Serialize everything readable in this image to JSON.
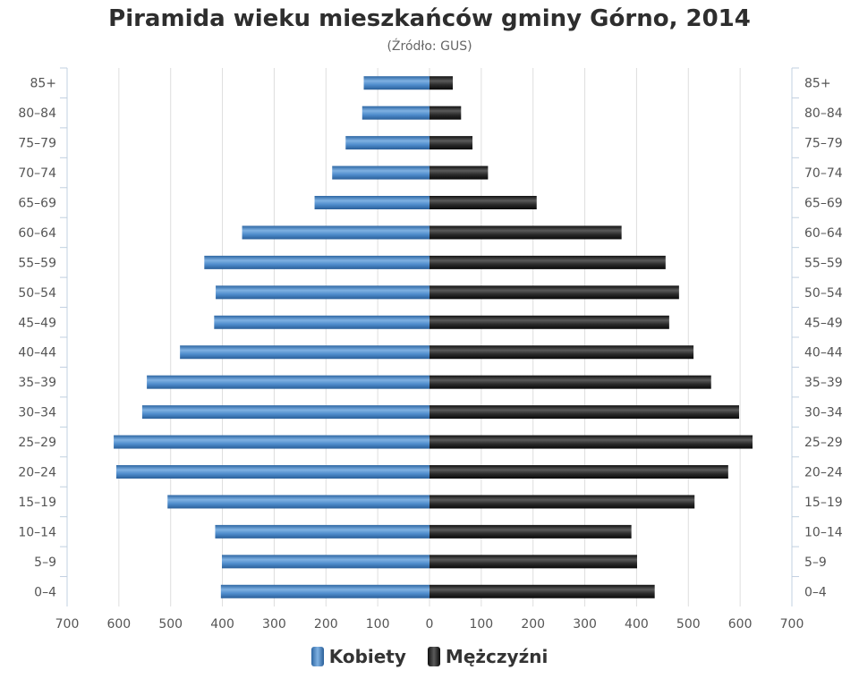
{
  "chart_data": {
    "type": "bar",
    "orientation": "horizontal",
    "title": "Piramida wieku mieszkańców gminy Górno, 2014",
    "subtitle": "(Źródło: GUS)",
    "categories": [
      "85+",
      "80-84",
      "75-79",
      "70-74",
      "65-69",
      "60-64",
      "55-59",
      "50-54",
      "45-49",
      "40-44",
      "35-39",
      "30-34",
      "25-29",
      "20-24",
      "15-19",
      "10-14",
      "5-9",
      "0-4"
    ],
    "series": [
      {
        "name": "Kobiety",
        "color": "#3d78b8",
        "values": [
          127,
          130,
          162,
          188,
          222,
          362,
          435,
          413,
          416,
          482,
          546,
          555,
          610,
          605,
          506,
          414,
          401,
          403
        ]
      },
      {
        "name": "Mężczyźni",
        "color": "#1c1c1c",
        "values": [
          45,
          61,
          83,
          113,
          207,
          371,
          456,
          482,
          463,
          510,
          544,
          598,
          624,
          577,
          512,
          390,
          401,
          435
        ]
      }
    ],
    "xlim": [
      -700,
      700
    ],
    "xticks": [
      "700",
      "600",
      "500",
      "400",
      "300",
      "200",
      "100",
      "0",
      "100",
      "200",
      "300",
      "400",
      "500",
      "600",
      "700"
    ],
    "grid": true,
    "legend_position": "bottom"
  }
}
